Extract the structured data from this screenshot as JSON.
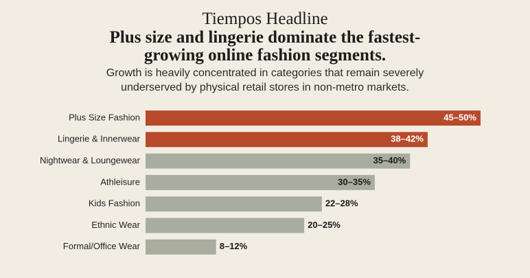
{
  "chart_data": {
    "type": "bar",
    "orientation": "horizontal",
    "kicker": "Tiempos Headline",
    "title": "Plus size and lingerie dominate the fastest-growing online fashion segments.",
    "subtitle": "Growth is heavily concentrated in categories that remain severely underserved by physical retail stores in non-metro markets.",
    "categories": [
      "Plus Size Fashion",
      "Lingerie & Innerwear",
      "Nightwear & Loungewear",
      "Athleisure",
      "Kids Fashion",
      "Ethnic Wear",
      "Formal/Office Wear"
    ],
    "values": [
      47.5,
      40,
      37.5,
      32.5,
      25,
      22.5,
      10
    ],
    "value_labels": [
      "45–50%",
      "38–42%",
      "35–40%",
      "30–35%",
      "22–28%",
      "20–25%",
      "8–12%"
    ],
    "colors": [
      "#b84a2c",
      "#b84a2c",
      "#a9ad9f",
      "#a9ad9f",
      "#a9ad9f",
      "#a9ad9f",
      "#a9ad9f"
    ]
  }
}
